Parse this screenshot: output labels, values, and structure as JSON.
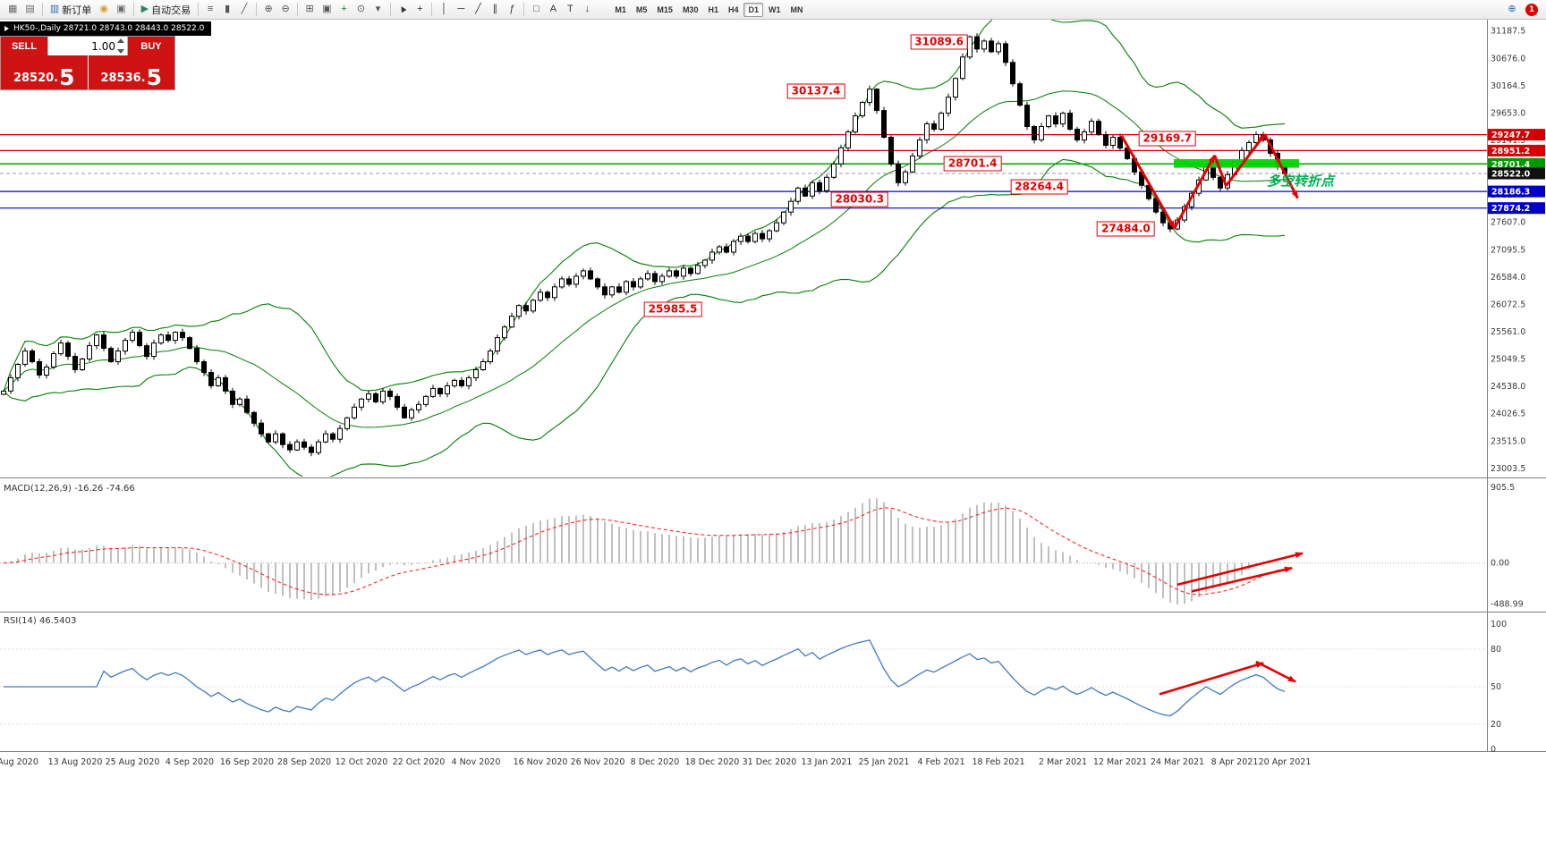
{
  "chart_header": {
    "title_line": "HK50-,Daily 28721.0 28743.0 28443.0 28522.0"
  },
  "trade_panel": {
    "sell_label": "SELL",
    "buy_label": "BUY",
    "volume": "1.00",
    "sell_price": {
      "main": "28520.",
      "big": "5"
    },
    "buy_price": {
      "main": "28536.",
      "big": "5"
    }
  },
  "toolbar": {
    "items": [
      {
        "name": "new-chart-button",
        "glyph": "▦",
        "c": "#6b6b6b"
      },
      {
        "name": "profiles-button",
        "glyph": "▤",
        "c": "#6b6b6b"
      },
      {
        "sep": true
      },
      {
        "name": "new-order-button",
        "glyph": "▥",
        "label": "新订单",
        "c": "#2b6cb0"
      },
      {
        "name": "alert-button",
        "glyph": "◉",
        "c": "#d69e2e"
      },
      {
        "name": "print-button",
        "glyph": "▣",
        "c": "#6b6b6b"
      },
      {
        "sep": true
      },
      {
        "name": "auto-trading-button",
        "glyph": "▶",
        "label": "自动交易",
        "c": "#2f855a"
      },
      {
        "sep": true
      },
      {
        "name": "bars-chart-button",
        "glyph": "≡",
        "c": "#555555"
      },
      {
        "name": "candles-chart-button",
        "glyph": "▮",
        "c": "#555555"
      },
      {
        "name": "line-chart-button",
        "glyph": "╱",
        "c": "#555555"
      },
      {
        "sep": true
      },
      {
        "name": "zoom-in-button",
        "glyph": "⊕",
        "c": "#555555"
      },
      {
        "name": "zoom-out-button",
        "glyph": "⊖",
        "c": "#555555"
      },
      {
        "sep": true
      },
      {
        "name": "tile-windows-button",
        "glyph": "⊞",
        "c": "#555555"
      },
      {
        "name": "cascade-windows-button",
        "glyph": "▣",
        "c": "#555555"
      },
      {
        "name": "indicators-button",
        "glyph": "+",
        "c": "#0a8a0a"
      },
      {
        "name": "period-clock-button",
        "glyph": "⊙",
        "c": "#555555"
      },
      {
        "name": "templates-button",
        "glyph": "▾",
        "c": "#555555"
      },
      {
        "sep": true
      },
      {
        "name": "cursor-button",
        "glyph": "▲",
        "c": "#333333",
        "rot": -30
      },
      {
        "name": "crosshair-button",
        "glyph": "+",
        "c": "#333333"
      },
      {
        "sep": true
      },
      {
        "name": "vline-button",
        "glyph": "│",
        "c": "#333333"
      },
      {
        "name": "hline-button",
        "glyph": "─",
        "c": "#333333"
      },
      {
        "name": "trendline-button",
        "glyph": "╱",
        "c": "#333333"
      },
      {
        "name": "channel-button",
        "glyph": "∥",
        "c": "#333333"
      },
      {
        "name": "fibonacci-button",
        "glyph": "ƒ",
        "c": "#333333"
      },
      {
        "sep": true
      },
      {
        "name": "shapes-button",
        "glyph": "□",
        "c": "#333333"
      },
      {
        "name": "text-button",
        "glyph": "A",
        "c": "#333333"
      },
      {
        "name": "label-button",
        "glyph": "T",
        "c": "#333333"
      },
      {
        "name": "arrows-button",
        "glyph": "↓",
        "c": "#333333"
      }
    ],
    "timeframes": [
      "M1",
      "M5",
      "M15",
      "M30",
      "H1",
      "H4",
      "D1",
      "W1",
      "MN"
    ],
    "active_timeframe": "D1",
    "right_items": [
      {
        "name": "search-button",
        "glyph": "⊕",
        "c": "#2b6cb0"
      },
      {
        "name": "notification-badge",
        "glyph": "1",
        "badge": true
      }
    ]
  },
  "chart_data": {
    "type": "candlestick+indicators",
    "symbol": "HK50-",
    "period": "Daily",
    "ohlc_header": {
      "open": "28721.0",
      "high": "28743.0",
      "low": "28443.0",
      "close": "28522.0"
    },
    "bollinger_period": 20,
    "closes": [
      24450,
      24700,
      24950,
      25200,
      25000,
      24750,
      24900,
      25150,
      25350,
      25100,
      24850,
      25050,
      25300,
      25500,
      25250,
      25000,
      25200,
      25400,
      25550,
      25300,
      25100,
      25350,
      25500,
      25400,
      25550,
      25450,
      25250,
      25000,
      24800,
      24550,
      24700,
      24450,
      24200,
      24300,
      24050,
      23850,
      23650,
      23500,
      23650,
      23450,
      23350,
      23500,
      23400,
      23300,
      23500,
      23650,
      23550,
      23750,
      23950,
      24150,
      24300,
      24400,
      24250,
      24450,
      24350,
      24150,
      23950,
      24100,
      24200,
      24350,
      24500,
      24400,
      24550,
      24650,
      24550,
      24700,
      24850,
      25000,
      25200,
      25450,
      25650,
      25850,
      26050,
      25950,
      26150,
      26300,
      26200,
      26400,
      26550,
      26450,
      26600,
      26700,
      26550,
      26400,
      26250,
      26400,
      26300,
      26500,
      26400,
      26550,
      26650,
      26500,
      26600,
      26700,
      26600,
      26750,
      26650,
      26800,
      26900,
      27050,
      27150,
      27050,
      27250,
      27350,
      27250,
      27400,
      27300,
      27450,
      27600,
      27800,
      28000,
      28250,
      28100,
      28350,
      28200,
      28450,
      28700,
      29000,
      29300,
      29600,
      29850,
      30100,
      29700,
      29200,
      28700,
      28350,
      28550,
      28850,
      29150,
      29450,
      29350,
      29650,
      29950,
      30300,
      30700,
      31080,
      30850,
      31000,
      30800,
      30950,
      30600,
      30200,
      29800,
      29400,
      29150,
      29400,
      29600,
      29450,
      29650,
      29350,
      29150,
      29300,
      29500,
      29250,
      29050,
      29200,
      29000,
      28800,
      28550,
      28300,
      28050,
      27800,
      27600,
      27484,
      27650,
      27900,
      28150,
      28400,
      28650,
      28450,
      28250,
      28500,
      28750,
      28950,
      29100,
      29250,
      29150,
      28900,
      28650,
      28522
    ],
    "x_labels": [
      [
        "Aug 2020",
        2
      ],
      [
        "13 Aug 2020",
        10
      ],
      [
        "25 Aug 2020",
        18
      ],
      [
        "4 Sep 2020",
        26
      ],
      [
        "16 Sep 2020",
        34
      ],
      [
        "28 Sep 2020",
        42
      ],
      [
        "12 Oct 2020",
        50
      ],
      [
        "22 Oct 2020",
        58
      ],
      [
        "4 Nov 2020",
        66
      ],
      [
        "16 Nov 2020",
        75
      ],
      [
        "26 Nov 2020",
        83
      ],
      [
        "8 Dec 2020",
        91
      ],
      [
        "18 Dec 2020",
        99
      ],
      [
        "31 Dec 2020",
        107
      ],
      [
        "13 Jan 2021",
        115
      ],
      [
        "25 Jan 2021",
        123
      ],
      [
        "4 Feb 2021",
        131
      ],
      [
        "18 Feb 2021",
        139
      ],
      [
        "2 Mar 2021",
        148
      ],
      [
        "12 Mar 2021",
        156
      ],
      [
        "24 Mar 2021",
        164
      ],
      [
        "8 Apr 2021",
        172
      ],
      [
        "20 Apr 2021",
        179
      ]
    ],
    "y_ticks": [
      "31187.5",
      "30676.0",
      "30164.5",
      "29653.0",
      "29141.5",
      "28630.0",
      "28118.5",
      "27607.0",
      "27095.5",
      "26584.0",
      "26072.5",
      "25561.0",
      "25049.5",
      "24538.0",
      "24026.5",
      "23515.0",
      "23003.5"
    ],
    "price_lines": [
      {
        "p": 29247.7,
        "c": "#d40000",
        "w": 1.2
      },
      {
        "p": 28951.2,
        "c": "#d40000",
        "w": 1.2
      },
      {
        "p": 28701.4,
        "c": "#00a000",
        "w": 1.5
      },
      {
        "p": 28522.0,
        "c": "#999999",
        "w": 1,
        "dash": "4,3"
      },
      {
        "p": 28186.3,
        "c": "#0000c8",
        "w": 1.2
      },
      {
        "p": 27874.2,
        "c": "#0000c8",
        "w": 1.2
      }
    ],
    "price_tags": [
      {
        "t": "29247.7",
        "p": 29247.7,
        "bg": "#d40000"
      },
      {
        "t": "28951.2",
        "p": 28951.2,
        "bg": "#d40000"
      },
      {
        "t": "28701.4",
        "p": 28701.4,
        "bg": "#009900"
      },
      {
        "t": "28522.0",
        "p": 28522.0,
        "bg": "#101010"
      },
      {
        "t": "28186.3",
        "p": 28186.3,
        "bg": "#0000c8"
      },
      {
        "t": "27874.2",
        "p": 27874.2,
        "bg": "#0000c8"
      }
    ],
    "callouts": [
      {
        "t": "31089.6",
        "i": 130.7,
        "p": 30980
      },
      {
        "t": "30137.4",
        "i": 113.5,
        "p": 30060
      },
      {
        "t": "29169.7",
        "i": 162.6,
        "p": 29169
      },
      {
        "t": "28701.4",
        "i": 135.4,
        "p": 28701
      },
      {
        "t": "28264.4",
        "i": 144.7,
        "p": 28264
      },
      {
        "t": "28030.3",
        "i": 119.6,
        "p": 28030
      },
      {
        "t": "27484.0",
        "i": 156.8,
        "p": 27484
      },
      {
        "t": "25985.5",
        "i": 93.5,
        "p": 25985
      }
    ],
    "green_zone": {
      "i0": 163.5,
      "i1": 181,
      "p0": 28630,
      "p1": 28790
    },
    "zigzag": {
      "points": [
        [
          156.2,
          29230
        ],
        [
          163.6,
          27500
        ],
        [
          169.2,
          28860
        ],
        [
          170.8,
          28290
        ],
        [
          176.2,
          29255
        ],
        [
          180.8,
          28060
        ]
      ],
      "arrow_segments": [
        0,
        1,
        3,
        4
      ]
    },
    "note": {
      "text": "多空转折点",
      "i": 176.5,
      "p": 28300,
      "color": "#00b050"
    },
    "macd": {
      "label": "MACD(12,26,9) -16.26 -74.66",
      "ticks": [
        [
          "905.5",
          905.5
        ],
        [
          "0.00",
          0
        ],
        [
          "-488.99",
          -488.99
        ]
      ],
      "arrows": [
        [
          164,
          -260,
          181.5,
          115
        ],
        [
          166,
          -340,
          180,
          -60
        ]
      ]
    },
    "rsi": {
      "label": "RSI(14) 46.5403",
      "ticks": [
        [
          "100",
          100
        ],
        [
          "80",
          80
        ],
        [
          "50",
          50
        ],
        [
          "20",
          20
        ],
        [
          "0",
          0
        ]
      ],
      "levels": [
        80,
        50,
        20
      ],
      "arrows": [
        [
          161.5,
          44,
          176,
          69
        ],
        [
          175,
          70,
          180.5,
          54
        ]
      ]
    }
  }
}
